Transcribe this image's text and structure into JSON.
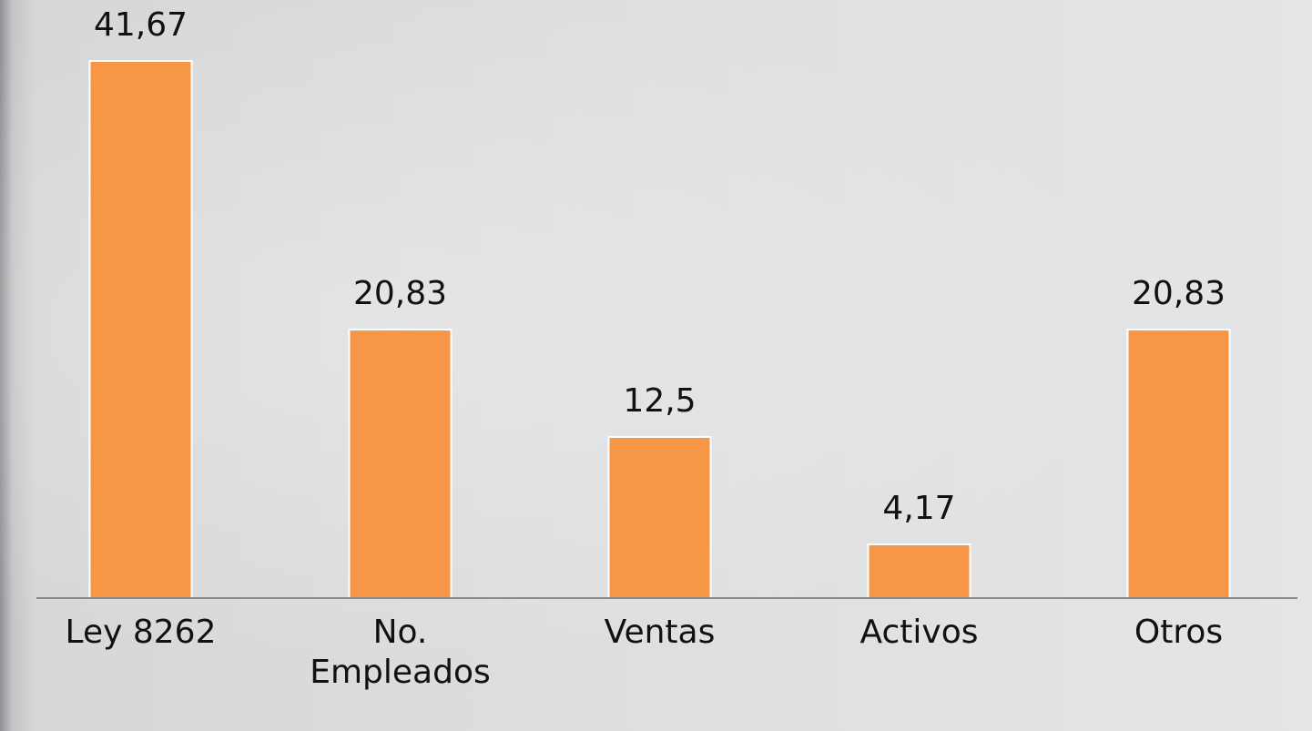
{
  "chart_data": {
    "type": "bar",
    "categories": [
      "Ley 8262",
      "No. Empleados",
      "Ventas",
      "Activos",
      "Otros"
    ],
    "values": [
      41.67,
      20.83,
      12.5,
      4.17,
      20.83
    ],
    "value_labels": [
      "41,67",
      "20,83",
      "12,5",
      "4,17",
      "20,83"
    ],
    "color": "#f79646"
  }
}
